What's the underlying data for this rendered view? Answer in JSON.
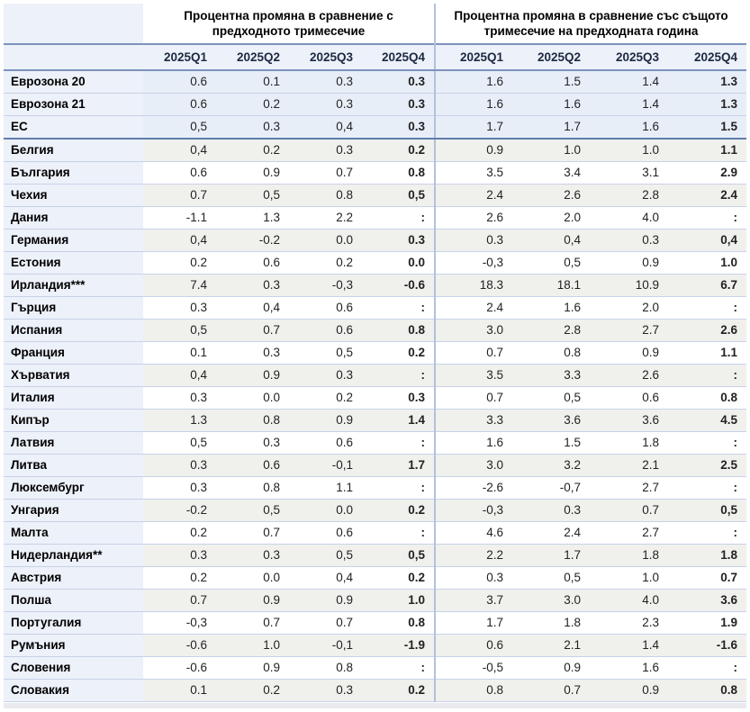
{
  "chart_data": {
    "type": "table",
    "column_group_headers": [
      "Процентна промяна в сравнение с предходното тримесечие",
      "Процентна промяна в сравнение със същото тримесечие на предходната година"
    ],
    "quarter_columns": [
      "2025Q1",
      "2025Q2",
      "2025Q3",
      "2025Q4"
    ],
    "missing_value_symbol": ":",
    "aggregate_rows_count": 3,
    "rows": [
      {
        "name": "Еврозона 20",
        "prev_quarter": [
          "0.6",
          "0.1",
          "0.3",
          "0.3"
        ],
        "prev_year": [
          "1.6",
          "1.5",
          "1.4",
          "1.3"
        ]
      },
      {
        "name": "Еврозона 21",
        "prev_quarter": [
          "0.6",
          "0.2",
          "0.3",
          "0.3"
        ],
        "prev_year": [
          "1.6",
          "1.6",
          "1.4",
          "1.3"
        ]
      },
      {
        "name": "ЕС",
        "prev_quarter": [
          "0,5",
          "0.3",
          "0,4",
          "0.3"
        ],
        "prev_year": [
          "1.7",
          "1.7",
          "1.6",
          "1.5"
        ]
      },
      {
        "name": "Белгия",
        "prev_quarter": [
          "0,4",
          "0.2",
          "0.3",
          "0.2"
        ],
        "prev_year": [
          "0.9",
          "1.0",
          "1.0",
          "1.1"
        ]
      },
      {
        "name": "България",
        "prev_quarter": [
          "0.6",
          "0.9",
          "0.7",
          "0.8"
        ],
        "prev_year": [
          "3.5",
          "3.4",
          "3.1",
          "2.9"
        ]
      },
      {
        "name": "Чехия",
        "prev_quarter": [
          "0.7",
          "0,5",
          "0.8",
          "0,5"
        ],
        "prev_year": [
          "2.4",
          "2.6",
          "2.8",
          "2.4"
        ]
      },
      {
        "name": "Дания",
        "prev_quarter": [
          "-1.1",
          "1.3",
          "2.2",
          ":"
        ],
        "prev_year": [
          "2.6",
          "2.0",
          "4.0",
          ":"
        ]
      },
      {
        "name": "Германия",
        "prev_quarter": [
          "0,4",
          "-0.2",
          "0.0",
          "0.3"
        ],
        "prev_year": [
          "0.3",
          "0,4",
          "0.3",
          "0,4"
        ]
      },
      {
        "name": "Естония",
        "prev_quarter": [
          "0.2",
          "0.6",
          "0.2",
          "0.0"
        ],
        "prev_year": [
          "-0,3",
          "0,5",
          "0.9",
          "1.0"
        ]
      },
      {
        "name": "Ирландия***",
        "prev_quarter": [
          "7.4",
          "0.3",
          "-0,3",
          "-0.6"
        ],
        "prev_year": [
          "18.3",
          "18.1",
          "10.9",
          "6.7"
        ]
      },
      {
        "name": "Гърция",
        "prev_quarter": [
          "0.3",
          "0,4",
          "0.6",
          ":"
        ],
        "prev_year": [
          "2.4",
          "1.6",
          "2.0",
          ":"
        ]
      },
      {
        "name": "Испания",
        "prev_quarter": [
          "0,5",
          "0.7",
          "0.6",
          "0.8"
        ],
        "prev_year": [
          "3.0",
          "2.8",
          "2.7",
          "2.6"
        ]
      },
      {
        "name": "Франция",
        "prev_quarter": [
          "0.1",
          "0.3",
          "0,5",
          "0.2"
        ],
        "prev_year": [
          "0.7",
          "0.8",
          "0.9",
          "1.1"
        ]
      },
      {
        "name": "Хърватия",
        "prev_quarter": [
          "0,4",
          "0.9",
          "0.3",
          ":"
        ],
        "prev_year": [
          "3.5",
          "3.3",
          "2.6",
          ":"
        ]
      },
      {
        "name": "Италия",
        "prev_quarter": [
          "0.3",
          "0.0",
          "0.2",
          "0.3"
        ],
        "prev_year": [
          "0.7",
          "0,5",
          "0.6",
          "0.8"
        ]
      },
      {
        "name": "Кипър",
        "prev_quarter": [
          "1.3",
          "0.8",
          "0.9",
          "1.4"
        ],
        "prev_year": [
          "3.3",
          "3.6",
          "3.6",
          "4.5"
        ]
      },
      {
        "name": "Латвия",
        "prev_quarter": [
          "0,5",
          "0.3",
          "0.6",
          ":"
        ],
        "prev_year": [
          "1.6",
          "1.5",
          "1.8",
          ":"
        ]
      },
      {
        "name": "Литва",
        "prev_quarter": [
          "0.3",
          "0.6",
          "-0,1",
          "1.7"
        ],
        "prev_year": [
          "3.0",
          "3.2",
          "2.1",
          "2.5"
        ]
      },
      {
        "name": "Люксембург",
        "prev_quarter": [
          "0.3",
          "0.8",
          "1.1",
          ":"
        ],
        "prev_year": [
          "-2.6",
          "-0,7",
          "2.7",
          ":"
        ]
      },
      {
        "name": "Унгария",
        "prev_quarter": [
          "-0.2",
          "0,5",
          "0.0",
          "0.2"
        ],
        "prev_year": [
          "-0,3",
          "0.3",
          "0.7",
          "0,5"
        ]
      },
      {
        "name": "Малта",
        "prev_quarter": [
          "0.2",
          "0.7",
          "0.6",
          ":"
        ],
        "prev_year": [
          "4.6",
          "2.4",
          "2.7",
          ":"
        ]
      },
      {
        "name": "Нидерландия**",
        "prev_quarter": [
          "0.3",
          "0.3",
          "0,5",
          "0,5"
        ],
        "prev_year": [
          "2.2",
          "1.7",
          "1.8",
          "1.8"
        ]
      },
      {
        "name": "Австрия",
        "prev_quarter": [
          "0.2",
          "0.0",
          "0,4",
          "0.2"
        ],
        "prev_year": [
          "0.3",
          "0,5",
          "1.0",
          "0.7"
        ]
      },
      {
        "name": "Полша",
        "prev_quarter": [
          "0.7",
          "0.9",
          "0.9",
          "1.0"
        ],
        "prev_year": [
          "3.7",
          "3.0",
          "4.0",
          "3.6"
        ]
      },
      {
        "name": "Португалия",
        "prev_quarter": [
          "-0,3",
          "0.7",
          "0.7",
          "0.8"
        ],
        "prev_year": [
          "1.7",
          "1.8",
          "2.3",
          "1.9"
        ]
      },
      {
        "name": "Румъния",
        "prev_quarter": [
          "-0.6",
          "1.0",
          "-0,1",
          "-1.9"
        ],
        "prev_year": [
          "0.6",
          "2.1",
          "1.4",
          "-1.6"
        ]
      },
      {
        "name": "Словения",
        "prev_quarter": [
          "-0.6",
          "0.9",
          "0.8",
          ":"
        ],
        "prev_year": [
          "-0,5",
          "0.9",
          "1.6",
          ":"
        ]
      },
      {
        "name": "Словакия",
        "prev_quarter": [
          "0.1",
          "0.2",
          "0.3",
          "0.2"
        ],
        "prev_year": [
          "0.8",
          "0.7",
          "0.9",
          "0.8"
        ]
      }
    ]
  },
  "colors": {
    "panel-blue": "#edf1f9",
    "agg-bg": "#e8eef8",
    "stripe-gray": "#f0f0ed",
    "stripe-white": "#ffffff",
    "row-line": "#c7d2e8",
    "header-line": "#7d93bd",
    "agg-line": "#5e7dab",
    "group-divider": "#b3c1de",
    "header-bg": "#edf1fa",
    "header-text": "#1b2940",
    "data-text": "#222222"
  }
}
